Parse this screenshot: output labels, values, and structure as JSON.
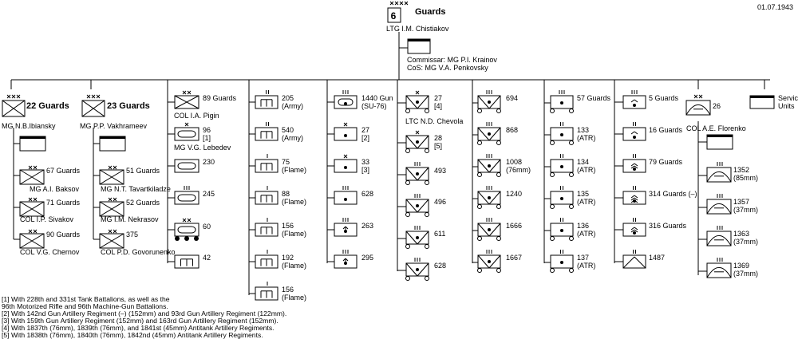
{
  "date": "01.07.1943",
  "hq": {
    "number": "6",
    "name": "Guards",
    "commander": "LTG I.M. Chistiakov",
    "commissar": "Commissar: MG P.I. Krainov",
    "cos": "CoS: MG V.A. Penkovsky"
  },
  "corps": [
    {
      "name": "22 Guards",
      "commander": "MG N.B.Ibiansky",
      "divisions": [
        {
          "name": "67 Guards",
          "commander": "MG A.I. Baksov"
        },
        {
          "name": "71 Guards",
          "commander": "COL I.P. Sivakov"
        },
        {
          "name": "90 Guards",
          "commander": "COL V.G. Chernov"
        }
      ]
    },
    {
      "name": "23 Guards",
      "commander": "MG P.P. Vakhrameev",
      "divisions": [
        {
          "name": "51 Guards",
          "commander": "MG N.T. Tavartkiladze"
        },
        {
          "name": "52 Guards",
          "commander": "MG I.M. Nekrasov"
        },
        {
          "name": "375",
          "commander": "COL P.D. Govorunenko"
        }
      ]
    }
  ],
  "col3": [
    {
      "name": "89 Guards",
      "commander": "COL I.A. Pigin"
    },
    {
      "name": "96",
      "note": "[1]",
      "commander": "MG V.G. Lebedev"
    },
    {
      "name": "230"
    },
    {
      "name": "245"
    },
    {
      "name": "60"
    },
    {
      "name": "42"
    }
  ],
  "col4": [
    {
      "name": "205",
      "sub": "(Army)"
    },
    {
      "name": "540",
      "sub": "(Army)"
    },
    {
      "name": "75",
      "sub": "(Flame)"
    },
    {
      "name": "88",
      "sub": "(Flame)"
    },
    {
      "name": "156",
      "sub": "(Flame)"
    },
    {
      "name": "192",
      "sub": "(Flame)"
    },
    {
      "name": "156",
      "sub": "(Flame)"
    }
  ],
  "col5": [
    {
      "name": "1440 Gun",
      "sub": "(SU-76)"
    },
    {
      "name": "27",
      "sub": "[2]"
    },
    {
      "name": "33",
      "sub": "[3]"
    },
    {
      "name": "628"
    },
    {
      "name": "263"
    },
    {
      "name": "295"
    }
  ],
  "col6": [
    {
      "name": "27",
      "sub": "[4]",
      "commander": "LTC N.D. Chevola"
    },
    {
      "name": "28",
      "sub": "[5]"
    },
    {
      "name": "493"
    },
    {
      "name": "496"
    },
    {
      "name": "611"
    },
    {
      "name": "628"
    }
  ],
  "col7": [
    {
      "name": "694"
    },
    {
      "name": "868"
    },
    {
      "name": "1008",
      "sub": "(76mm)"
    },
    {
      "name": "1240"
    },
    {
      "name": "1666"
    },
    {
      "name": "1667"
    }
  ],
  "col8": [
    {
      "name": "57 Guards"
    },
    {
      "name": "133",
      "sub": "(ATR)"
    },
    {
      "name": "134",
      "sub": "(ATR)"
    },
    {
      "name": "135",
      "sub": "(ATR)"
    },
    {
      "name": "136",
      "sub": "(ATR)"
    },
    {
      "name": "137",
      "sub": "(ATR)"
    }
  ],
  "col9": [
    {
      "name": "5 Guards"
    },
    {
      "name": "16 Guards"
    },
    {
      "name": "79 Guards"
    },
    {
      "name": "314 Guards (–)"
    },
    {
      "name": "316 Guards"
    },
    {
      "name": "1487"
    }
  ],
  "col10": {
    "name": "26",
    "commander": "COL A.E. Florenko",
    "regiments": [
      {
        "name": "1352",
        "sub": "(85mm)"
      },
      {
        "name": "1357",
        "sub": "(37mm)"
      },
      {
        "name": "1363",
        "sub": "(37mm)"
      },
      {
        "name": "1369",
        "sub": "(37mm)"
      }
    ]
  },
  "service": {
    "line1": "Service",
    "line2": "Units"
  },
  "footnotes": [
    "[1] With 228th and 331st Tank Battalions, as well as the",
    "      96th Motorized Rifle and 96th Machine-Gun Battalions.",
    "[2] With 142nd Gun Artillery Regiment (–) (152mm) and 93rd Gun Artillery Regiment (122mm).",
    "[3] With 159th Gun Artillery Regiment (152mm) and 163rd Gun Artillery Regiment (152mm).",
    "[4] With 1837th (76mm), 1839th (76mm), and 1841st (45mm) Antitank Artillery Regiments.",
    "[5] With 1838th (76mm), 1840th (76mm), 1842nd (45mm) Antitank Artillery Regiments."
  ]
}
